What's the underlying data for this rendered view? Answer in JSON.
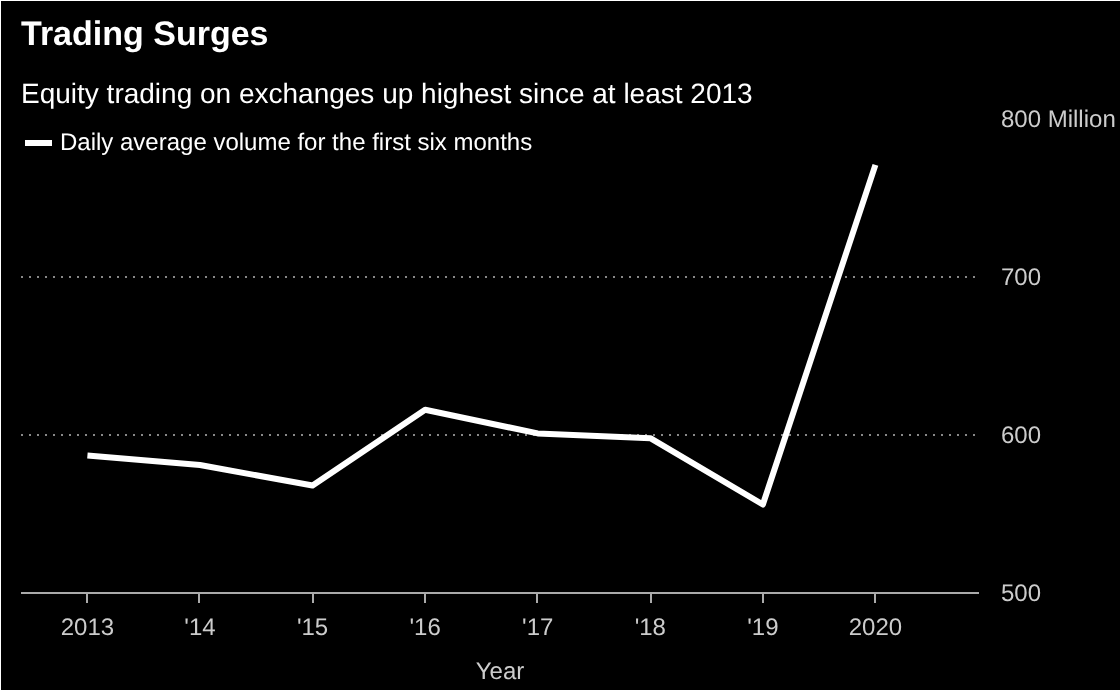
{
  "chart_data": {
    "type": "line",
    "title": "Trading Surges",
    "subtitle": "Equity trading on exchanges up highest since at least 2013",
    "xlabel": "Year",
    "x": [
      2013,
      2014,
      2015,
      2016,
      2017,
      2018,
      2019,
      2020
    ],
    "series": [
      {
        "name": "Daily average volume for the first six months",
        "color": "#ffffff",
        "values": [
          587,
          581,
          568,
          616,
          601,
          598,
          556,
          771
        ]
      }
    ],
    "xlim": [
      2012.41,
      2020.92
    ],
    "xticks": [
      {
        "value": 2013,
        "label": "2013"
      },
      {
        "value": 2014,
        "label": "'14"
      },
      {
        "value": 2015,
        "label": "'15"
      },
      {
        "value": 2016,
        "label": "'16"
      },
      {
        "value": 2017,
        "label": "'17"
      },
      {
        "value": 2018,
        "label": "'18"
      },
      {
        "value": 2019,
        "label": "'19"
      },
      {
        "value": 2020,
        "label": "2020"
      }
    ],
    "ylim": [
      500,
      800
    ],
    "yticks": [
      500,
      600,
      700,
      {
        "value": 800,
        "label": "800 Million"
      }
    ],
    "grid": "y",
    "legend": "top left",
    "marker": "none",
    "line_style": "solid"
  }
}
